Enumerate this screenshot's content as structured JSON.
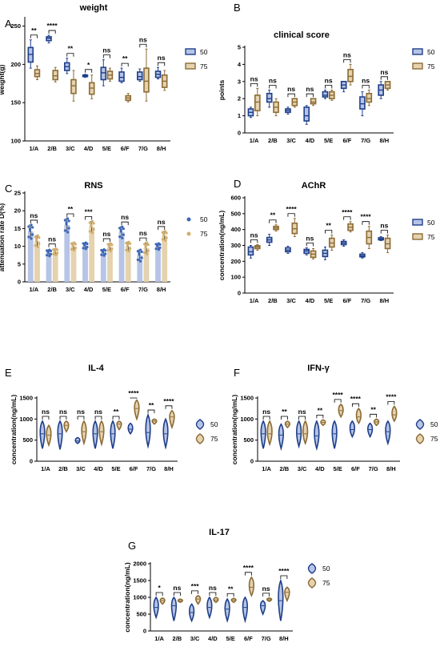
{
  "colors": {
    "series_50": "#1f3f8a",
    "series_50_fill": "#b6c4e6",
    "series_75": "#8c6b35",
    "series_75_fill": "#e5d2ae",
    "dot_50": "#3c66b8",
    "dot_75": "#d1ae6c",
    "axis": "#000000"
  },
  "chart_data": [
    {
      "panel": "A",
      "title": "weight",
      "type": "box",
      "categories": [
        "1/A",
        "2/B",
        "3/C",
        "4/D",
        "5/E",
        "6/F",
        "7/G",
        "8/H"
      ],
      "ylabel": "weight(g)",
      "ylim": [
        100,
        260
      ],
      "yticks": [
        100,
        150,
        200,
        250
      ],
      "legend": [
        "50",
        "75"
      ],
      "significance": [
        "**",
        "****",
        "**",
        "*",
        "ns",
        "**",
        "ns",
        "ns"
      ],
      "series": [
        {
          "name": "50",
          "boxes": [
            [
              195,
              203,
              213,
              222,
              232
            ],
            [
              228,
              231,
              234,
              236,
              238
            ],
            [
              188,
              192,
              197,
              202,
              208
            ],
            [
              183,
              184,
              185,
              186,
              187
            ],
            [
              172,
              180,
              189,
              196,
              206
            ],
            [
              176,
              178,
              183,
              190,
              195
            ],
            [
              178,
              180,
              184,
              190,
              194
            ],
            [
              181,
              183,
              187,
              191,
              196
            ]
          ]
        },
        {
          "name": "75",
          "boxes": [
            [
              180,
              184,
              188,
              193,
              198
            ],
            [
              177,
              180,
              185,
              192,
              196
            ],
            [
              152,
              162,
              172,
              180,
              192
            ],
            [
              155,
              161,
              169,
              176,
              186
            ],
            [
              178,
              181,
              186,
              191,
              195
            ],
            [
              151,
              153,
              156,
              159,
              162
            ],
            [
              152,
              164,
              178,
              195,
              220
            ],
            [
              166,
              170,
              178,
              186,
              192
            ]
          ]
        }
      ]
    },
    {
      "panel": "B",
      "title": "clinical score",
      "type": "box",
      "categories": [
        "1/A",
        "2/B",
        "3/C",
        "4/D",
        "5/E",
        "6/F",
        "7/G",
        "8/H"
      ],
      "ylabel": "points",
      "ylim": [
        0,
        5
      ],
      "yticks": [
        0,
        1,
        2,
        3,
        4,
        5
      ],
      "legend": [
        "50",
        "75"
      ],
      "significance": [
        "ns",
        "ns",
        "ns",
        "ns",
        "ns",
        "ns",
        "ns",
        "ns"
      ],
      "series": [
        {
          "name": "50",
          "boxes": [
            [
              0.9,
              1.0,
              1.2,
              1.4,
              1.5
            ],
            [
              1.5,
              1.8,
              2.0,
              2.3,
              2.5
            ],
            [
              1.1,
              1.2,
              1.3,
              1.4,
              1.5
            ],
            [
              0.5,
              0.7,
              1.0,
              1.5,
              1.6
            ],
            [
              2.0,
              2.1,
              2.2,
              2.4,
              2.5
            ],
            [
              2.4,
              2.6,
              2.8,
              3.0,
              3.0
            ],
            [
              1.0,
              1.4,
              1.7,
              2.1,
              2.4
            ],
            [
              2.0,
              2.2,
              2.5,
              2.8,
              3.0
            ]
          ]
        },
        {
          "name": "75",
          "boxes": [
            [
              1.0,
              1.3,
              1.8,
              2.2,
              2.6
            ],
            [
              1.0,
              1.2,
              1.5,
              1.8,
              2.0
            ],
            [
              1.5,
              1.6,
              1.8,
              2.0,
              2.0
            ],
            [
              1.6,
              1.7,
              1.8,
              2.0,
              2.0
            ],
            [
              1.9,
              2.0,
              2.2,
              2.4,
              2.5
            ],
            [
              2.8,
              3.0,
              3.3,
              3.7,
              4.0
            ],
            [
              1.6,
              1.8,
              2.0,
              2.3,
              2.5
            ],
            [
              2.5,
              2.6,
              2.8,
              3.0,
              3.0
            ]
          ]
        }
      ]
    },
    {
      "panel": "C",
      "title": "RNS",
      "type": "bar",
      "categories": [
        "1/A",
        "2/B",
        "3/C",
        "4/D",
        "5/E",
        "6/F",
        "7/G",
        "8/H"
      ],
      "ylabel": "attenuation rate D(%)",
      "ylim": [
        0,
        25
      ],
      "yticks": [
        0,
        5,
        10,
        15,
        20,
        25
      ],
      "legend": [
        "50",
        "75"
      ],
      "significance": [
        "ns",
        "ns",
        "**",
        "***",
        "ns",
        "ns",
        "ns",
        "ns"
      ],
      "series": [
        {
          "name": "50",
          "values": [
            14.2,
            8.2,
            16.0,
            10.2,
            8.3,
            14.0,
            7.5,
            10.0
          ],
          "errors": [
            1.8,
            0.8,
            1.8,
            0.8,
            0.8,
            1.5,
            1.5,
            0.8
          ]
        },
        {
          "name": "75",
          "values": [
            11.5,
            8.5,
            10.0,
            15.5,
            9.8,
            10.0,
            9.5,
            13.0
          ],
          "errors": [
            1.5,
            0.8,
            1.0,
            1.5,
            1.0,
            1.2,
            1.5,
            1.2
          ]
        }
      ]
    },
    {
      "panel": "D",
      "title": "AChR",
      "type": "box",
      "categories": [
        "1/A",
        "2/B",
        "3/C",
        "4/D",
        "5/E",
        "6/F",
        "7/G",
        "8/H"
      ],
      "ylabel": "concentration(ng/mL)",
      "ylim": [
        0,
        600
      ],
      "yticks": [
        0,
        100,
        200,
        300,
        400,
        500,
        600
      ],
      "legend": [
        "50",
        "75"
      ],
      "significance": [
        "ns",
        "**",
        "****",
        "ns",
        "**",
        "****",
        "****",
        "ns"
      ],
      "series": [
        {
          "name": "50",
          "boxes": [
            [
              220,
              240,
              260,
              290,
              300
            ],
            [
              300,
              320,
              335,
              350,
              370
            ],
            [
              250,
              260,
              270,
              285,
              295
            ],
            [
              240,
              250,
              265,
              275,
              285
            ],
            [
              210,
              230,
              250,
              270,
              290
            ],
            [
              295,
              305,
              315,
              325,
              335
            ],
            [
              220,
              228,
              235,
              245,
              255
            ],
            [
              330,
              335,
              340,
              348,
              355
            ]
          ]
        },
        {
          "name": "75",
          "boxes": [
            [
              270,
              280,
              290,
              298,
              305
            ],
            [
              390,
              400,
              410,
              420,
              430
            ],
            [
              355,
              375,
              405,
              440,
              470
            ],
            [
              215,
              225,
              245,
              265,
              280
            ],
            [
              270,
              290,
              315,
              345,
              365
            ],
            [
              385,
              395,
              415,
              435,
              450
            ],
            [
              280,
              310,
              350,
              390,
              420
            ],
            [
              255,
              280,
              310,
              345,
              365
            ]
          ]
        }
      ]
    },
    {
      "panel": "E",
      "title": "IL-4",
      "type": "violin",
      "categories": [
        "1/A",
        "2/B",
        "3/C",
        "4/D",
        "5/E",
        "6/F",
        "7/G",
        "8/H"
      ],
      "ylabel": "concentration(ng/mL)",
      "ylim": [
        0,
        1500
      ],
      "yticks": [
        0,
        500,
        1000,
        1500
      ],
      "legend": [
        "50",
        "75"
      ],
      "significance": [
        "ns",
        "ns",
        "ns",
        "ns",
        "**",
        "****",
        "**",
        "****"
      ],
      "series": [
        {
          "name": "50",
          "violins": [
            [
              300,
              650,
              950
            ],
            [
              280,
              650,
              950
            ],
            [
              420,
              480,
              560
            ],
            [
              300,
              650,
              950
            ],
            [
              300,
              650,
              950
            ],
            [
              650,
              760,
              900
            ],
            [
              350,
              680,
              1100
            ],
            [
              330,
              650,
              1000
            ]
          ]
        },
        {
          "name": "75",
          "violins": [
            [
              380,
              620,
              850
            ],
            [
              700,
              850,
              950
            ],
            [
              420,
              700,
              950
            ],
            [
              400,
              700,
              950
            ],
            [
              750,
              880,
              950
            ],
            [
              1000,
              1250,
              1450
            ],
            [
              880,
              950,
              1000
            ],
            [
              800,
              1050,
              1200
            ]
          ]
        }
      ]
    },
    {
      "panel": "F",
      "title": "IFN-γ",
      "type": "violin",
      "categories": [
        "1/A",
        "2/B",
        "3/C",
        "4/D",
        "5/E",
        "6/F",
        "7/G",
        "8/H"
      ],
      "ylabel": "concentration(ng/mL)",
      "ylim": [
        0,
        1500
      ],
      "yticks": [
        0,
        500,
        1000,
        1500
      ],
      "legend": [
        "50",
        "75"
      ],
      "significance": [
        "ns",
        "**",
        "ns",
        "**",
        "****",
        "****",
        "**",
        "****"
      ],
      "series": [
        {
          "name": "50",
          "violins": [
            [
              300,
              650,
              950
            ],
            [
              300,
              620,
              880
            ],
            [
              350,
              650,
              950
            ],
            [
              300,
              600,
              950
            ],
            [
              300,
              650,
              950
            ],
            [
              580,
              750,
              950
            ],
            [
              580,
              750,
              900
            ],
            [
              420,
              700,
              950
            ]
          ]
        },
        {
          "name": "75",
          "violins": [
            [
              400,
              650,
              950
            ],
            [
              800,
              880,
              950
            ],
            [
              420,
              650,
              950
            ],
            [
              850,
              920,
              980
            ],
            [
              1050,
              1200,
              1350
            ],
            [
              900,
              1050,
              1250
            ],
            [
              850,
              930,
              1000
            ],
            [
              950,
              1100,
              1300
            ]
          ]
        }
      ]
    },
    {
      "panel": "G",
      "title": "IL-17",
      "type": "violin",
      "categories": [
        "1/A",
        "2/B",
        "3/C",
        "4/D",
        "5/E",
        "6/F",
        "7/G",
        "8/H"
      ],
      "ylabel": "concentration(ng/mL)",
      "ylim": [
        0,
        2000
      ],
      "yticks": [
        0,
        500,
        1000,
        1500,
        2000
      ],
      "legend": [
        "50",
        "75"
      ],
      "significance": [
        "*",
        "ns",
        "***",
        "ns",
        "**",
        "****",
        "ns",
        "****"
      ],
      "series": [
        {
          "name": "50",
          "violins": [
            [
              400,
              700,
              1000
            ],
            [
              300,
              750,
              1000
            ],
            [
              300,
              550,
              800
            ],
            [
              400,
              700,
              1000
            ],
            [
              300,
              650,
              950
            ],
            [
              300,
              700,
              1000
            ],
            [
              500,
              750,
              900
            ],
            [
              300,
              900,
              1500
            ]
          ]
        },
        {
          "name": "75",
          "violins": [
            [
              800,
              900,
              980
            ],
            [
              850,
              900,
              950
            ],
            [
              800,
              950,
              1050
            ],
            [
              850,
              920,
              1000
            ],
            [
              850,
              920,
              970
            ],
            [
              1050,
              1300,
              1600
            ],
            [
              880,
              930,
              980
            ],
            [
              900,
              1150,
              1300
            ]
          ]
        }
      ]
    }
  ]
}
